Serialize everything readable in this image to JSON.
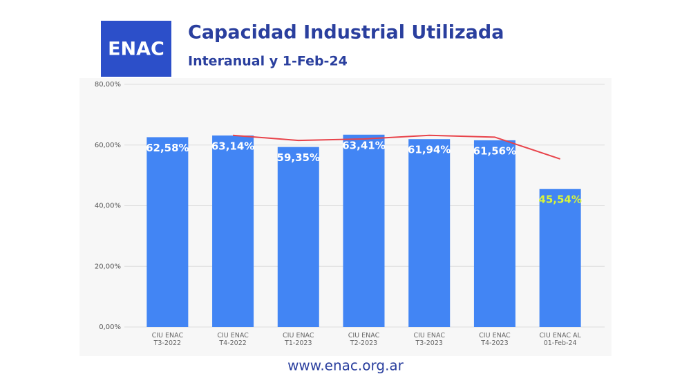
{
  "logo": "ENAC",
  "chart_data": {
    "type": "bar",
    "title": "Capacidad Industrial Utilizada",
    "subtitle": "Interanual y 1-Feb-24",
    "categories": [
      "CIU ENAC T3-2022",
      "CIU ENAC T4-2022",
      "CIU ENAC T1-2023",
      "CIU ENAC T2-2023",
      "CIU ENAC T3-2023",
      "CIU ENAC T4-2023",
      "CIU ENAC AL 01-Feb-24"
    ],
    "values": [
      62.58,
      63.14,
      59.35,
      63.41,
      61.94,
      61.56,
      45.54
    ],
    "value_labels": [
      "62,58%",
      "63,14%",
      "59,35%",
      "63,41%",
      "61,94%",
      "61,56%",
      "45,54%"
    ],
    "color": "#4285f4",
    "label_colors": [
      "#ffffff",
      "#ffffff",
      "#ffffff",
      "#ffffff",
      "#ffffff",
      "#ffffff",
      "#d9f53a"
    ],
    "trend_line": {
      "color": "#e8434a",
      "values": [
        null,
        63.2,
        61.5,
        62.0,
        63.2,
        62.6,
        55.4
      ]
    },
    "ylim": [
      0,
      80
    ],
    "yticks": [
      {
        "value": 0,
        "label": "0,00%"
      },
      {
        "value": 20,
        "label": "20,00%"
      },
      {
        "value": 40,
        "label": "40,00%"
      },
      {
        "value": 60,
        "label": "60,00%"
      },
      {
        "value": 80,
        "label": "80,00%"
      }
    ],
    "grid": true
  },
  "footer": "www.enac.org.ar"
}
